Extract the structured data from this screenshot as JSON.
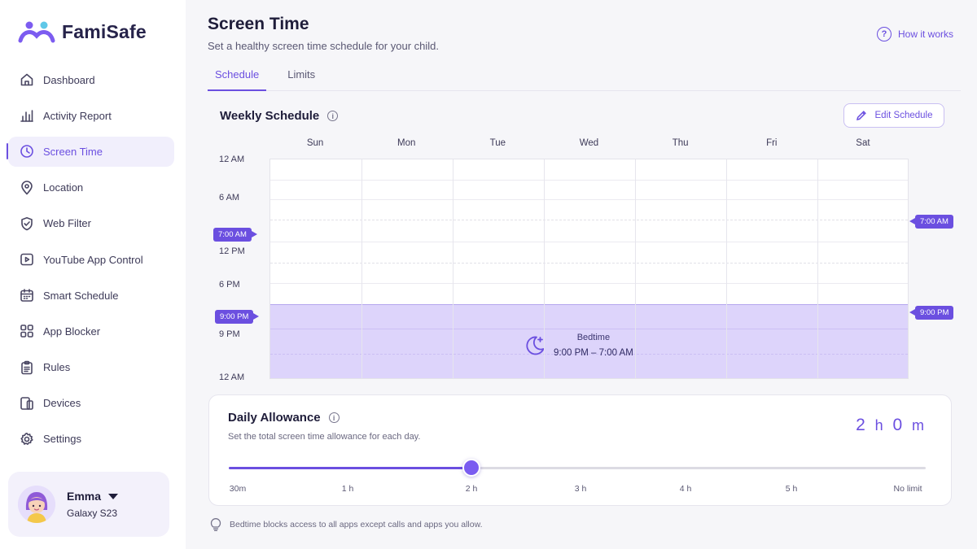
{
  "app": {
    "name": "FamiSafe"
  },
  "sidebar": {
    "items": [
      {
        "label": "Dashboard",
        "icon": "home-icon"
      },
      {
        "label": "Activity Report",
        "icon": "bar-chart-icon"
      },
      {
        "label": "Screen Time",
        "icon": "clock-icon",
        "active": true
      },
      {
        "label": "Location",
        "icon": "location-pin-icon"
      },
      {
        "label": "Web Filter",
        "icon": "shield-check-icon"
      },
      {
        "label": "YouTube App Control",
        "icon": "play-icon"
      },
      {
        "label": "Smart Schedule",
        "icon": "calendar-icon"
      },
      {
        "label": "App Blocker",
        "icon": "grid-icon"
      },
      {
        "label": "Rules",
        "icon": "clipboard-icon"
      },
      {
        "label": "Devices",
        "icon": "devices-icon"
      },
      {
        "label": "Settings",
        "icon": "gear-icon"
      }
    ],
    "profile": {
      "name": "Emma",
      "device": "Galaxy S23"
    }
  },
  "header": {
    "title": "Screen Time",
    "subtitle": "Set a healthy screen time schedule for your child.",
    "help_label": "How it works"
  },
  "tabs": [
    {
      "label": "Schedule",
      "active": true
    },
    {
      "label": "Limits",
      "active": false
    }
  ],
  "schedule": {
    "title": "Weekly Schedule",
    "edit_label": "Edit Schedule",
    "days": [
      "Sun",
      "Mon",
      "Tue",
      "Wed",
      "Thu",
      "Fri",
      "Sat"
    ],
    "time_labels": [
      "12 AM",
      "6 AM",
      "12 PM",
      "6 PM",
      "9 PM",
      "12 AM"
    ],
    "start_marker": "7:00 AM",
    "end_marker": "9:00 PM",
    "bedtime": {
      "title": "Bedtime",
      "range": "9:00 PM – 7:00 AM"
    }
  },
  "allowance": {
    "title": "Daily Allowance",
    "description": "Set the total screen time allowance for each day.",
    "value_hours": "2",
    "value_minutes": "0",
    "hour_unit": "h",
    "minute_unit": "m",
    "ticks": [
      "30m",
      "1 h",
      "2 h",
      "3 h",
      "4 h",
      "5 h",
      "No limit"
    ],
    "selected_index": 2
  },
  "footnote": "Bedtime blocks access to all apps except calls and apps you allow.",
  "colors": {
    "accent": "#6b4fe0",
    "bedtime_fill": "#ddd4fb",
    "sidebar_active_bg": "#f1effc"
  }
}
